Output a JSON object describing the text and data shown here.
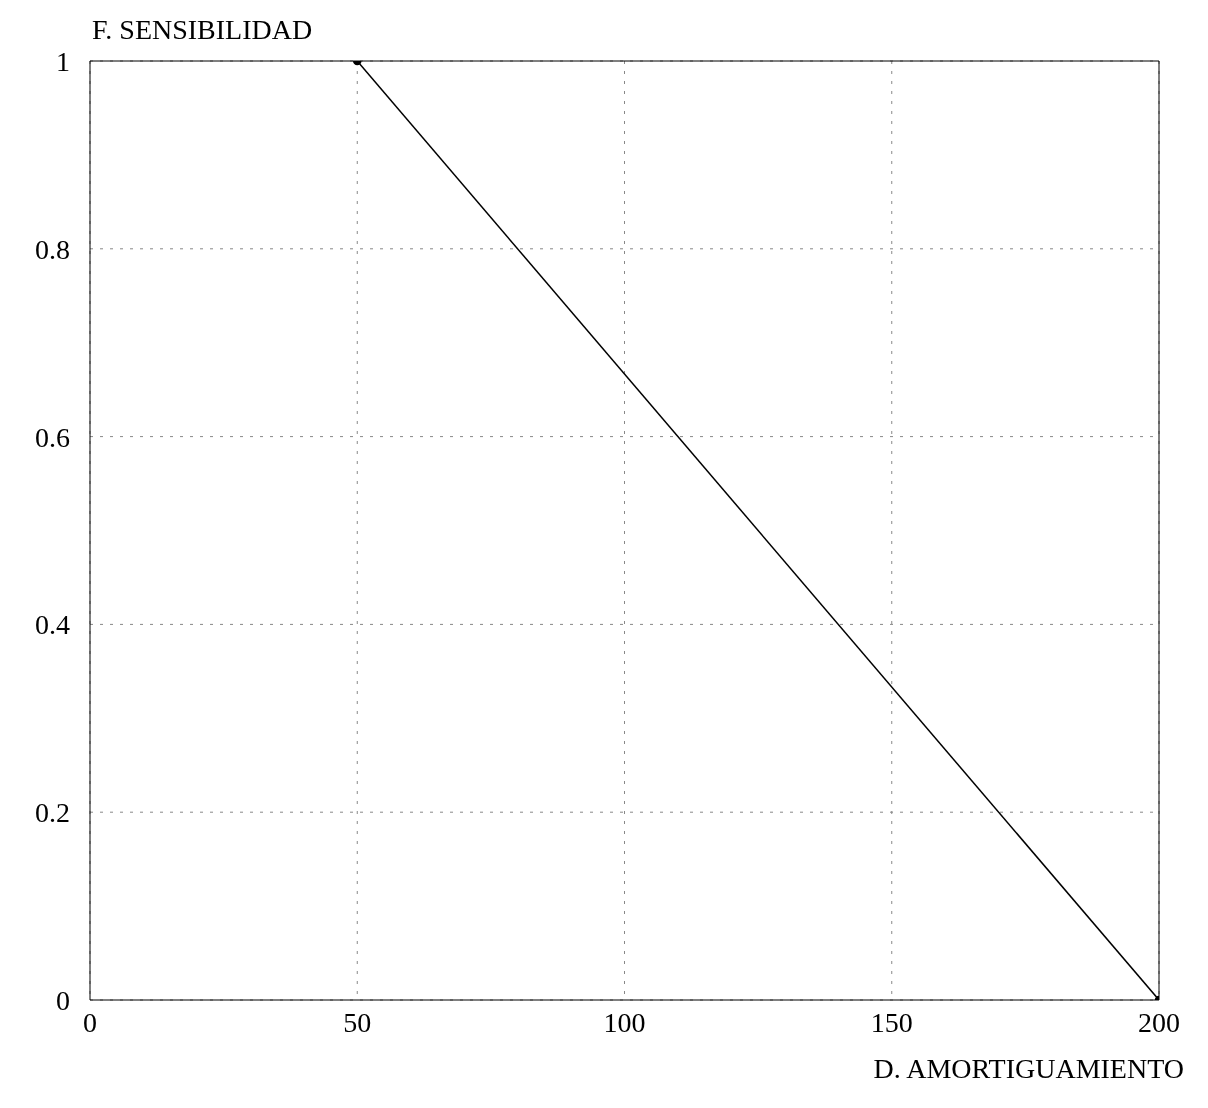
{
  "chart_data": {
    "type": "line",
    "xlabel": "D. AMORTIGUAMIENTO",
    "ylabel": "F. SENSIBILIDAD",
    "x": [
      50,
      200
    ],
    "series": [
      {
        "color": "#000000",
        "values": [
          1,
          0
        ]
      }
    ],
    "xlim": [
      0,
      200
    ],
    "xticks": [
      0,
      50,
      100,
      150,
      200
    ],
    "ylim": [
      0,
      1
    ],
    "yticks": [
      0,
      0.2,
      0.4,
      0.6,
      0.8,
      1
    ],
    "grid": true,
    "marker": "circle",
    "line_style": "solid"
  }
}
